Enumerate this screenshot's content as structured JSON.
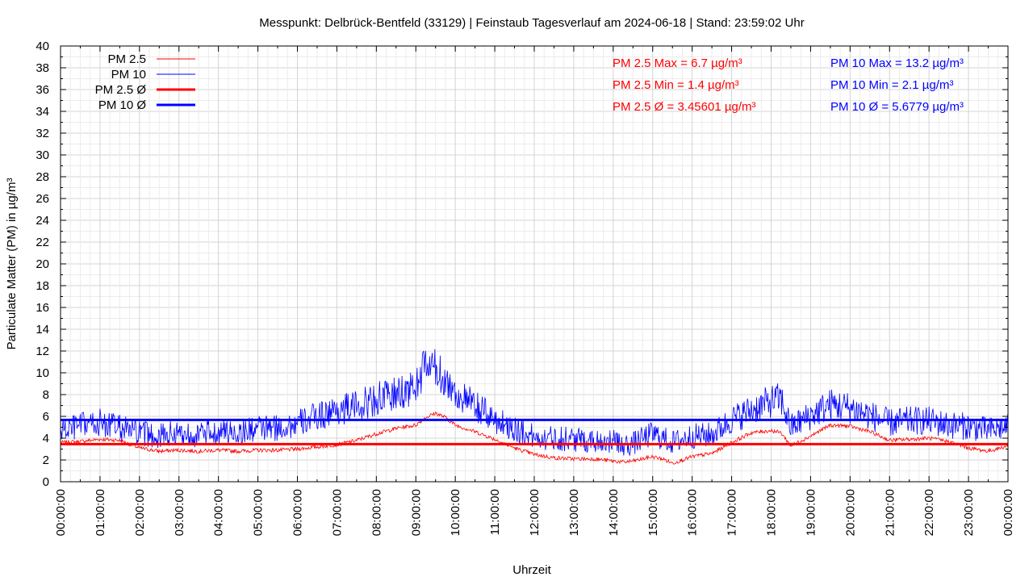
{
  "chart_data": {
    "type": "line",
    "title": "Messpunkt: Delbrück-Bentfeld (33129) | Feinstaub Tagesverlauf am 2024-06-18 | Stand: 23:59:02 Uhr",
    "xlabel": "Uhrzeit",
    "ylabel": "Particulate Matter (PM) in µg/m³",
    "ylim": [
      0,
      40
    ],
    "y_ticks": [
      0,
      2,
      4,
      6,
      8,
      10,
      12,
      14,
      16,
      18,
      20,
      22,
      24,
      26,
      28,
      30,
      32,
      34,
      36,
      38,
      40
    ],
    "x_ticks": [
      "00:00:00",
      "01:00:00",
      "02:00:00",
      "03:00:00",
      "04:00:00",
      "05:00:00",
      "06:00:00",
      "07:00:00",
      "08:00:00",
      "09:00:00",
      "10:00:00",
      "11:00:00",
      "12:00:00",
      "13:00:00",
      "14:00:00",
      "15:00:00",
      "16:00:00",
      "17:00:00",
      "18:00:00",
      "19:00:00",
      "20:00:00",
      "21:00:00",
      "22:00:00",
      "23:00:00",
      "00:00:00"
    ],
    "xlim_hours": [
      0,
      24
    ],
    "grid": true,
    "legend_position": "top-left",
    "legend": [
      {
        "label": "PM 2.5",
        "color": "#ff0000",
        "style": "thin"
      },
      {
        "label": "PM 10",
        "color": "#0000ff",
        "style": "thin"
      },
      {
        "label": "PM 2.5 Ø",
        "color": "#ff0000",
        "style": "thick"
      },
      {
        "label": "PM 10 Ø",
        "color": "#0000ff",
        "style": "thick"
      }
    ],
    "series": [
      {
        "name": "PM 2.5",
        "color": "#ff0000",
        "x_hours": [
          0,
          0.5,
          1,
          1.5,
          2,
          2.5,
          3,
          3.5,
          4,
          4.5,
          5,
          5.5,
          6,
          6.5,
          7,
          7.5,
          8,
          8.5,
          9,
          9.25,
          9.5,
          9.75,
          10,
          10.5,
          11,
          11.5,
          12,
          12.5,
          13,
          13.5,
          14,
          14.25,
          14.5,
          15,
          15.25,
          15.5,
          15.75,
          16,
          16.5,
          17,
          17.5,
          18,
          18.25,
          18.5,
          19,
          19.5,
          20,
          20.5,
          21,
          21.5,
          22,
          22.5,
          23,
          23.5,
          24
        ],
        "values": [
          3.6,
          3.7,
          3.9,
          3.8,
          3.1,
          2.8,
          2.9,
          2.8,
          2.9,
          2.8,
          2.9,
          2.9,
          3.0,
          3.2,
          3.4,
          3.8,
          4.4,
          4.9,
          5.2,
          5.9,
          6.3,
          5.9,
          5.2,
          4.6,
          3.9,
          3.1,
          2.5,
          2.2,
          2.1,
          2.1,
          1.9,
          1.8,
          1.9,
          2.3,
          2.1,
          1.7,
          2.0,
          2.3,
          2.6,
          3.6,
          4.5,
          4.7,
          4.5,
          3.3,
          4.2,
          5.2,
          5.1,
          4.6,
          3.8,
          3.9,
          4.0,
          3.7,
          3.1,
          2.8,
          3.3
        ]
      },
      {
        "name": "PM 10",
        "color": "#0000ff",
        "x_hours": [
          0,
          0.5,
          1,
          1.5,
          2,
          2.5,
          3,
          3.5,
          4,
          4.5,
          5,
          5.5,
          6,
          6.5,
          7,
          7.5,
          8,
          8.5,
          9,
          9.25,
          9.5,
          9.75,
          10,
          10.5,
          11,
          11.5,
          12,
          12.5,
          13,
          13.5,
          14,
          14.25,
          14.5,
          15,
          15.25,
          15.5,
          15.75,
          16,
          16.5,
          17,
          17.5,
          18,
          18.25,
          18.5,
          19,
          19.5,
          20,
          20.5,
          21,
          21.5,
          22,
          22.5,
          23,
          23.5,
          24
        ],
        "values": [
          4.7,
          5.1,
          5.4,
          5.0,
          4.4,
          4.2,
          4.5,
          4.3,
          4.6,
          4.5,
          4.9,
          4.9,
          5.3,
          6.0,
          6.6,
          6.9,
          7.6,
          8.0,
          8.7,
          10.8,
          10.3,
          9.4,
          8.1,
          6.9,
          5.7,
          4.9,
          4.1,
          4.0,
          3.9,
          3.8,
          3.7,
          3.3,
          3.5,
          4.4,
          4.0,
          3.6,
          3.9,
          4.2,
          4.3,
          5.7,
          6.6,
          7.4,
          7.6,
          5.0,
          6.1,
          7.1,
          6.8,
          6.1,
          5.4,
          5.6,
          5.6,
          5.2,
          5.1,
          4.7,
          5.1
        ]
      },
      {
        "name": "PM 2.5 Ø",
        "color": "#ff0000",
        "constant": 3.45601
      },
      {
        "name": "PM 10 Ø",
        "color": "#0000ff",
        "constant": 5.6779
      }
    ],
    "annotations": {
      "pm25": [
        "PM 2.5 Max = 6.7 µg/m³",
        "PM 2.5 Min = 1.4 µg/m³",
        "PM 2.5 Ø = 3.45601 µg/m³"
      ],
      "pm10": [
        "PM 10 Max = 13.2 µg/m³",
        "PM 10 Min = 2.1 µg/m³",
        "PM 10 Ø = 5.6779 µg/m³"
      ]
    }
  }
}
